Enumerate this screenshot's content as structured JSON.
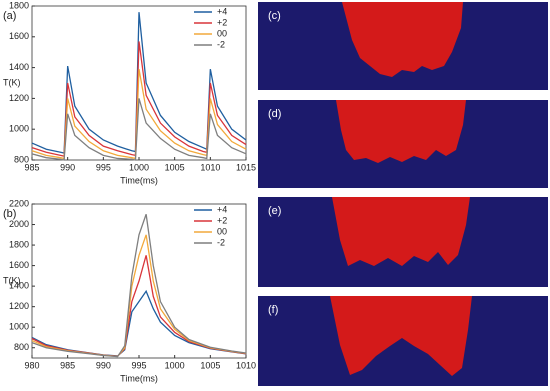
{
  "chart_data": [
    {
      "type": "line",
      "panel": "(a)",
      "ylabel": "T(K)",
      "xlabel": "Time(ms)",
      "legend": "upper right",
      "xlim": [
        985,
        1015
      ],
      "xticks": [
        985,
        990,
        995,
        1000,
        1005,
        1010,
        1015
      ],
      "ylim": [
        800,
        1800
      ],
      "yticks": [
        800,
        1000,
        1200,
        1400,
        1600,
        1800
      ],
      "x": [
        985,
        987,
        989,
        989.5,
        990,
        991,
        993,
        995,
        997,
        999,
        999.5,
        1000,
        1001,
        1003,
        1005,
        1007,
        1009,
        1009.5,
        1010,
        1011,
        1013,
        1015
      ],
      "series": [
        {
          "name": "+4",
          "color": "#1f5fa0",
          "values": [
            910,
            870,
            850,
            845,
            1410,
            1150,
            1000,
            930,
            890,
            860,
            855,
            1760,
            1300,
            1090,
            980,
            920,
            880,
            870,
            1390,
            1150,
            1000,
            930
          ]
        },
        {
          "name": "+2",
          "color": "#d9353a",
          "values": [
            880,
            850,
            830,
            825,
            1300,
            1080,
            960,
            890,
            860,
            835,
            830,
            1570,
            1220,
            1040,
            950,
            890,
            855,
            850,
            1300,
            1090,
            960,
            900
          ]
        },
        {
          "name": "00",
          "color": "#f2a93b",
          "values": [
            860,
            830,
            815,
            810,
            1200,
            1020,
            920,
            860,
            830,
            815,
            810,
            1390,
            1130,
            990,
            910,
            860,
            835,
            830,
            1200,
            1030,
            920,
            870
          ]
        },
        {
          "name": "-2",
          "color": "#7f7f7f",
          "values": [
            840,
            815,
            805,
            800,
            1100,
            960,
            880,
            830,
            810,
            805,
            800,
            1200,
            1040,
            940,
            870,
            830,
            815,
            810,
            1100,
            960,
            880,
            840
          ]
        }
      ]
    },
    {
      "type": "line",
      "panel": "(b)",
      "ylabel": "T(K)",
      "xlabel": "Time(ms)",
      "legend": "upper right",
      "xlim": [
        980,
        1010
      ],
      "xticks": [
        980,
        985,
        990,
        995,
        1000,
        1005,
        1010
      ],
      "ylim": [
        700,
        2200
      ],
      "yticks": [
        800,
        1000,
        1200,
        1400,
        1600,
        1800,
        2000,
        2200
      ],
      "x": [
        980,
        982,
        985,
        988,
        990,
        992,
        993,
        994,
        995,
        996,
        997,
        998,
        1000,
        1002,
        1005,
        1008,
        1010
      ],
      "series": [
        {
          "name": "+4",
          "color": "#1f5fa0",
          "values": [
            900,
            830,
            780,
            750,
            730,
            720,
            780,
            1150,
            1250,
            1350,
            1180,
            1050,
            920,
            850,
            790,
            760,
            740
          ]
        },
        {
          "name": "+2",
          "color": "#d9353a",
          "values": [
            890,
            820,
            775,
            748,
            728,
            718,
            790,
            1250,
            1450,
            1700,
            1300,
            1100,
            950,
            860,
            795,
            762,
            742
          ]
        },
        {
          "name": "00",
          "color": "#f2a93b",
          "values": [
            870,
            810,
            770,
            745,
            726,
            716,
            800,
            1400,
            1700,
            1900,
            1450,
            1180,
            980,
            870,
            800,
            765,
            745
          ]
        },
        {
          "name": "-2",
          "color": "#7f7f7f",
          "values": [
            850,
            800,
            765,
            742,
            724,
            714,
            820,
            1500,
            1900,
            2100,
            1600,
            1250,
            1000,
            880,
            805,
            768,
            748
          ]
        }
      ]
    }
  ],
  "panels": [
    {
      "label": "(c)"
    },
    {
      "label": "(d)"
    },
    {
      "label": "(e)"
    },
    {
      "label": "(f)"
    }
  ]
}
